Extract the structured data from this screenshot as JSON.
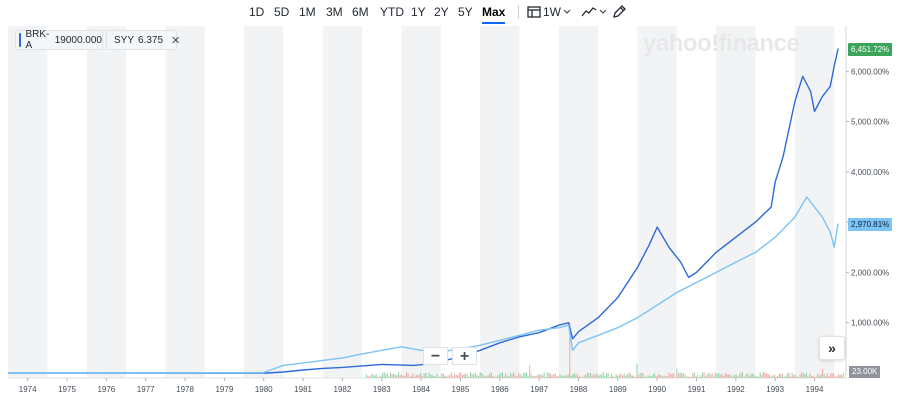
{
  "toolbar": {
    "ranges": [
      "1D",
      "5D",
      "1M",
      "3M",
      "6M",
      "YTD",
      "1Y",
      "2Y",
      "5Y",
      "Max"
    ],
    "active_range": "Max",
    "interval_label": "1W"
  },
  "legend": [
    {
      "symbol": "BRK-A",
      "value": "19000.000",
      "color": "#2d6ad8"
    },
    {
      "symbol": "SYY",
      "value": "6.375",
      "color": "#7cc3f6"
    }
  ],
  "watermark": "yahoo!finance",
  "nav_label": "»",
  "volume_badge": "23.00K",
  "chart_data": {
    "type": "line",
    "y_unit": "%",
    "y_ticks": [
      "1,000.00%",
      "2,000.00%",
      "3,000.00%",
      "4,000.00%",
      "5,000.00%",
      "6,000.00%"
    ],
    "y_tick_values": [
      1000,
      2000,
      3000,
      4000,
      5000,
      6000
    ],
    "ylim": [
      -100,
      6900
    ],
    "x_ticks": [
      "1974",
      "1975",
      "1976",
      "1977",
      "1978",
      "1979",
      "1980",
      "1981",
      "1982",
      "1983",
      "1984",
      "1985",
      "1986",
      "1987",
      "1988",
      "1989",
      "1990",
      "1991",
      "1992",
      "1993",
      "1994"
    ],
    "xlim": [
      1973.5,
      1994.8
    ],
    "grid": "alternating-year-bands",
    "series": [
      {
        "name": "BRK-A",
        "color": "#2d6ad8",
        "last_label": "6,451.72%",
        "x": [
          1973.5,
          1980.1,
          1980.5,
          1981.0,
          1981.5,
          1982.0,
          1982.5,
          1983.0,
          1983.4,
          1983.8,
          1984.2,
          1984.6,
          1985.0,
          1985.5,
          1986.0,
          1986.5,
          1987.0,
          1987.5,
          1987.75,
          1987.85,
          1988.0,
          1988.5,
          1989.0,
          1989.5,
          1989.8,
          1990.0,
          1990.3,
          1990.6,
          1990.8,
          1991.0,
          1991.5,
          1992.0,
          1992.5,
          1992.9,
          1993.0,
          1993.2,
          1993.5,
          1993.7,
          1993.9,
          1994.0,
          1994.2,
          1994.4,
          1994.5,
          1994.6
        ],
        "y": [
          0,
          0,
          20,
          60,
          90,
          110,
          140,
          170,
          160,
          150,
          180,
          250,
          320,
          450,
          600,
          720,
          800,
          950,
          1000,
          680,
          820,
          1100,
          1500,
          2100,
          2550,
          2900,
          2500,
          2200,
          1900,
          2000,
          2400,
          2700,
          3000,
          3300,
          3800,
          4300,
          5400,
          5900,
          5600,
          5200,
          5500,
          5700,
          6100,
          6452
        ]
      },
      {
        "name": "SYY",
        "color": "#7cc3f6",
        "last_label": "2,970.81%",
        "x": [
          1973.5,
          1980.0,
          1980.5,
          1981.0,
          1981.5,
          1982.0,
          1982.5,
          1983.0,
          1983.5,
          1984.0,
          1984.5,
          1985.0,
          1985.5,
          1986.0,
          1986.5,
          1987.0,
          1987.5,
          1987.75,
          1987.85,
          1988.0,
          1988.5,
          1989.0,
          1989.5,
          1990.0,
          1990.5,
          1991.0,
          1991.5,
          1992.0,
          1992.5,
          1993.0,
          1993.5,
          1993.8,
          1994.0,
          1994.2,
          1994.4,
          1994.5,
          1994.6
        ],
        "y": [
          0,
          10,
          150,
          200,
          250,
          300,
          380,
          450,
          520,
          450,
          420,
          480,
          550,
          650,
          750,
          850,
          900,
          950,
          450,
          600,
          750,
          900,
          1100,
          1350,
          1600,
          1800,
          2000,
          2200,
          2400,
          2700,
          3100,
          3500,
          3300,
          3100,
          2800,
          2500,
          2971
        ]
      }
    ]
  }
}
